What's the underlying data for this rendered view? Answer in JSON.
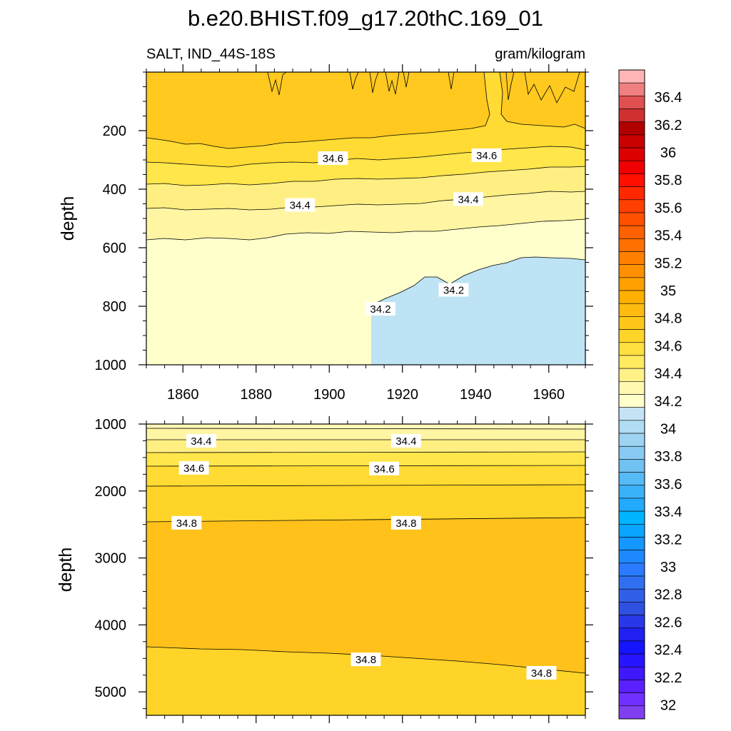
{
  "chart_data": {
    "type": "heatmap",
    "title": "b.e20.BHIST.f09_g17.20thC.169_01",
    "left_label": "SALT, IND_44S-18S",
    "right_label": "gram/kilogram",
    "ylabel": "depth",
    "x_range": [
      1850,
      1970
    ],
    "x_ticks": [
      1860,
      1880,
      1900,
      1920,
      1940,
      1960
    ],
    "upper_panel": {
      "ylim": [
        0,
        1000
      ],
      "y_ticks": [
        200,
        400,
        600,
        800,
        1000
      ],
      "contour_labels": [
        {
          "text": "34.6",
          "x": 1901,
          "depth": 295
        },
        {
          "text": "34.6",
          "x": 1943,
          "depth": 285
        },
        {
          "text": "34.4",
          "x": 1892,
          "depth": 455
        },
        {
          "text": "34.4",
          "x": 1938,
          "depth": 435
        },
        {
          "text": "34.2",
          "x": 1934,
          "depth": 745
        },
        {
          "text": "34.2",
          "x": 1914,
          "depth": 810
        }
      ]
    },
    "lower_panel": {
      "ylim": [
        1000,
        5350
      ],
      "y_ticks": [
        1000,
        2000,
        3000,
        4000,
        5000
      ],
      "contour_labels": [
        {
          "text": "34.4",
          "x": 1865,
          "depth": 1255
        },
        {
          "text": "34.4",
          "x": 1921,
          "depth": 1255
        },
        {
          "text": "34.6",
          "x": 1863,
          "depth": 1660
        },
        {
          "text": "34.6",
          "x": 1915,
          "depth": 1670
        },
        {
          "text": "34.8",
          "x": 1861,
          "depth": 2480
        },
        {
          "text": "34.8",
          "x": 1921,
          "depth": 2480
        },
        {
          "text": "34.8",
          "x": 1910,
          "depth": 4520
        },
        {
          "text": "34.8",
          "x": 1958,
          "depth": 4720
        }
      ]
    },
    "colorbar": {
      "labels": [
        "32",
        "32.2",
        "32.4",
        "32.6",
        "32.8",
        "33",
        "33.2",
        "33.4",
        "33.6",
        "33.8",
        "34",
        "34.2",
        "34.4",
        "34.6",
        "34.8",
        "35",
        "35.2",
        "35.4",
        "35.6",
        "35.8",
        "36",
        "36.2",
        "36.4"
      ],
      "colors_top_to_bottom": [
        "#FFB5B5",
        "#F08080",
        "#E05050",
        "#D03030",
        "#B00000",
        "#C80000",
        "#DC0000",
        "#F00000",
        "#FF1000",
        "#FF2800",
        "#FF4000",
        "#FF5000",
        "#FF6000",
        "#FF7000",
        "#FF8000",
        "#FF9000",
        "#FFA000",
        "#FFB000",
        "#FFBB10",
        "#FFC818",
        "#FFD428",
        "#FFE040",
        "#FFEA60",
        "#FFF088",
        "#FFF8B0",
        "#FFFFCC",
        "#C4E4F6",
        "#B0DCF4",
        "#9ED3F2",
        "#88CAF2",
        "#70C2F2",
        "#55BAF5",
        "#3AB2FA",
        "#22AAFF",
        "#00B4FF",
        "#0AA5FF",
        "#1497FF",
        "#1E88FF",
        "#2A7BFF",
        "#3070F0",
        "#3060E8",
        "#3050E0",
        "#2838E8",
        "#2020F0",
        "#1414FF",
        "#2814FF",
        "#4018FF",
        "#5A20FF",
        "#7030FF",
        "#8040F0"
      ]
    },
    "fill_colors": {
      "c34_0": "#BDE3F4",
      "c34_2": "#FFFFCC",
      "c34_4": "#FFF5A3",
      "c34_5": "#FFEF82",
      "c34_6": "#FFE64B",
      "c34_7": "#FFDB33",
      "c34_8": "#FFC91F",
      "c34_9": "#FFC11A"
    }
  }
}
